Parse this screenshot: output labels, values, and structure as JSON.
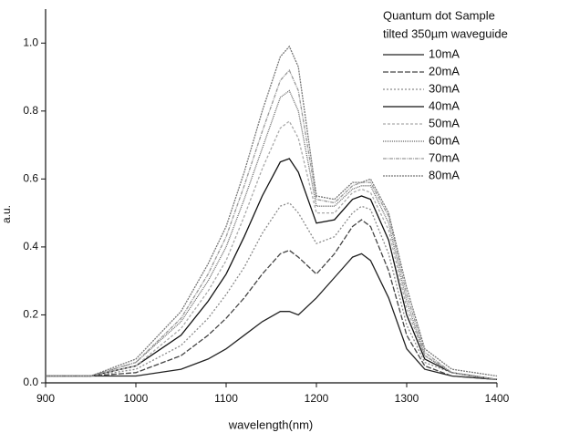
{
  "chart_data": {
    "type": "line",
    "x_label": "wavelength(nm)",
    "y_label": "a.u.",
    "legend_title": [
      "Quantum dot Sample",
      "tilted 350µm waveguide"
    ],
    "legend_position": "upper right",
    "x": [
      900,
      950,
      1000,
      1050,
      1080,
      1100,
      1120,
      1140,
      1160,
      1170,
      1180,
      1200,
      1220,
      1240,
      1250,
      1260,
      1280,
      1300,
      1320,
      1350,
      1400
    ],
    "xlim": [
      900,
      1400
    ],
    "xticks": [
      900,
      1000,
      1100,
      1200,
      1300,
      1400
    ],
    "ylim": [
      0,
      1.1
    ],
    "yticks": [
      {
        "value": 0,
        "label": "0.0"
      },
      0.2,
      0.4,
      0.6,
      0.8,
      {
        "value": 1,
        "label": "1.0"
      }
    ],
    "series": [
      {
        "name": "10mA",
        "color": "#222222",
        "values": [
          0.02,
          0.02,
          0.02,
          0.04,
          0.07,
          0.1,
          0.14,
          0.18,
          0.21,
          0.21,
          0.2,
          0.25,
          0.31,
          0.37,
          0.38,
          0.36,
          0.25,
          0.1,
          0.04,
          0.02,
          0.01
        ]
      },
      {
        "name": "20mA",
        "color": "#444444",
        "values": [
          0.02,
          0.02,
          0.03,
          0.08,
          0.14,
          0.19,
          0.25,
          0.32,
          0.38,
          0.39,
          0.37,
          0.32,
          0.38,
          0.46,
          0.48,
          0.46,
          0.33,
          0.14,
          0.05,
          0.02,
          0.01
        ]
      },
      {
        "name": "30mA",
        "color": "#8a8a8a",
        "values": [
          0.02,
          0.02,
          0.04,
          0.11,
          0.19,
          0.26,
          0.34,
          0.44,
          0.52,
          0.53,
          0.5,
          0.41,
          0.43,
          0.5,
          0.52,
          0.51,
          0.38,
          0.17,
          0.06,
          0.03,
          0.01
        ]
      },
      {
        "name": "40mA",
        "color": "#111111",
        "values": [
          0.02,
          0.02,
          0.05,
          0.14,
          0.24,
          0.32,
          0.43,
          0.55,
          0.65,
          0.66,
          0.62,
          0.47,
          0.48,
          0.54,
          0.55,
          0.54,
          0.42,
          0.2,
          0.07,
          0.03,
          0.01
        ]
      },
      {
        "name": "50mA",
        "color": "#aaaaaa",
        "values": [
          0.02,
          0.02,
          0.05,
          0.16,
          0.27,
          0.36,
          0.49,
          0.63,
          0.75,
          0.77,
          0.72,
          0.5,
          0.5,
          0.56,
          0.57,
          0.56,
          0.45,
          0.22,
          0.08,
          0.03,
          0.01
        ]
      },
      {
        "name": "60mA",
        "color": "#666666",
        "values": [
          0.02,
          0.02,
          0.06,
          0.18,
          0.3,
          0.4,
          0.54,
          0.69,
          0.84,
          0.86,
          0.8,
          0.52,
          0.52,
          0.57,
          0.58,
          0.58,
          0.47,
          0.24,
          0.08,
          0.03,
          0.01
        ]
      },
      {
        "name": "70mA",
        "color": "#999999",
        "values": [
          0.02,
          0.02,
          0.06,
          0.19,
          0.32,
          0.43,
          0.58,
          0.74,
          0.89,
          0.92,
          0.86,
          0.54,
          0.53,
          0.58,
          0.59,
          0.59,
          0.49,
          0.26,
          0.09,
          0.03,
          0.01
        ]
      },
      {
        "name": "80mA",
        "color": "#777777",
        "values": [
          0.02,
          0.02,
          0.07,
          0.21,
          0.35,
          0.46,
          0.62,
          0.8,
          0.96,
          0.99,
          0.93,
          0.55,
          0.54,
          0.59,
          0.59,
          0.6,
          0.5,
          0.28,
          0.1,
          0.04,
          0.02
        ]
      }
    ]
  }
}
